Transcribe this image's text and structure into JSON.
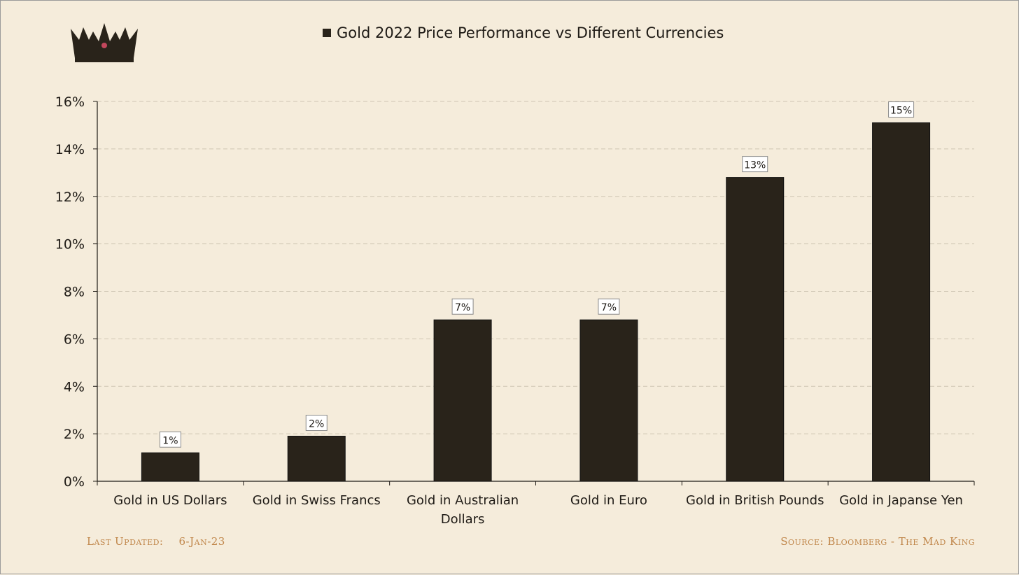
{
  "logo_icon": "crown-icon",
  "colors": {
    "background": "#f5ecdb",
    "bar": "#29231a",
    "footer": "#c0864a",
    "grid": "#cfc5b3"
  },
  "footer": {
    "updated_label": "Last Updated:",
    "updated_date": "6-Jan-23",
    "source": "Source: Bloomberg  - The Mad King"
  },
  "chart_data": {
    "type": "bar",
    "title": "Gold 2022 Price Performance vs Different Currencies",
    "legend": "Gold 2022 Price Performance vs Different Currencies",
    "legend_position": "top-center",
    "categories": [
      "Gold in US Dollars",
      "Gold in Swiss Francs",
      "Gold in Australian Dollars",
      "Gold in Euro",
      "Gold in British Pounds",
      "Gold in Japanse Yen"
    ],
    "values": [
      1.2,
      1.9,
      6.8,
      6.8,
      12.8,
      15.1
    ],
    "data_labels": [
      "1%",
      "2%",
      "7%",
      "7%",
      "13%",
      "15%"
    ],
    "y_ticks": [
      0,
      2,
      4,
      6,
      8,
      10,
      12,
      14,
      16
    ],
    "y_tick_labels": [
      "0%",
      "2%",
      "4%",
      "6%",
      "8%",
      "10%",
      "12%",
      "14%",
      "16%"
    ],
    "ylim": [
      0,
      16
    ],
    "grid": true,
    "xlabel": "",
    "ylabel": ""
  }
}
